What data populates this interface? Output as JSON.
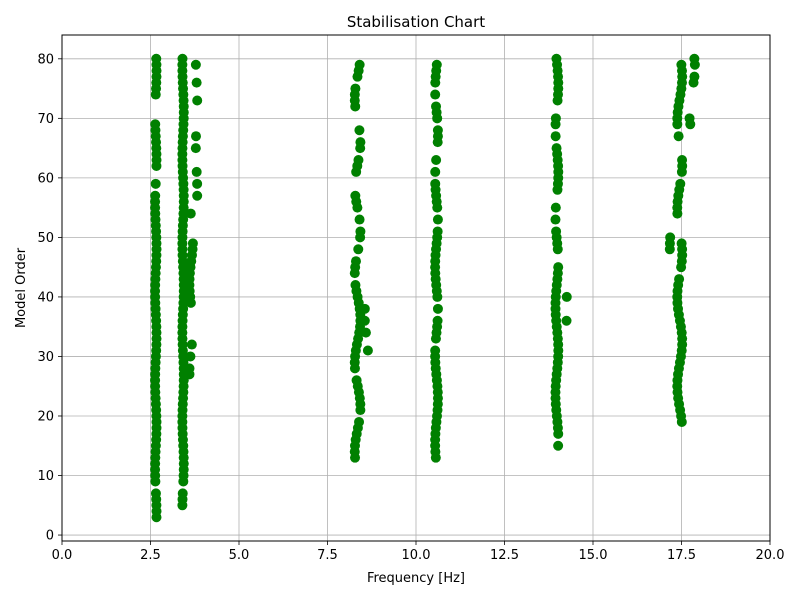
{
  "chart_data": {
    "type": "scatter",
    "title": "Stabilisation Chart",
    "xlabel": "Frequency [Hz]",
    "ylabel": "Model Order",
    "xlim": [
      0,
      20
    ],
    "ylim": [
      -1,
      84
    ],
    "xticks": [
      "0.0",
      "2.5",
      "5.0",
      "7.5",
      "10.0",
      "12.5",
      "15.0",
      "17.5",
      "20.0"
    ],
    "yticks": [
      "0",
      "10",
      "20",
      "30",
      "40",
      "50",
      "60",
      "70",
      "80"
    ],
    "grid": true,
    "marker_color": "#008000",
    "clusters": [
      {
        "x": 2.65,
        "spread": 0.02,
        "ranges": [
          [
            3,
            7
          ],
          [
            9,
            57
          ],
          [
            59,
            59
          ],
          [
            62,
            69
          ],
          [
            74,
            80
          ]
        ]
      },
      {
        "x": 3.42,
        "spread": 0.02,
        "ranges": [
          [
            5,
            7
          ],
          [
            9,
            80
          ]
        ]
      },
      {
        "x": 3.65,
        "spread": 0.05,
        "ranges": [
          [
            27,
            28
          ],
          [
            30,
            30
          ],
          [
            32,
            32
          ],
          [
            39,
            49
          ],
          [
            54,
            54
          ]
        ]
      },
      {
        "x": 3.8,
        "spread": 0.02,
        "ranges": [
          [
            57,
            57
          ],
          [
            59,
            59
          ],
          [
            61,
            61
          ],
          [
            65,
            65
          ],
          [
            67,
            67
          ],
          [
            73,
            73
          ],
          [
            76,
            76
          ],
          [
            79,
            79
          ]
        ]
      },
      {
        "x": 8.35,
        "spread": 0.08,
        "ranges": [
          [
            13,
            19
          ],
          [
            21,
            26
          ],
          [
            28,
            42
          ],
          [
            44,
            46
          ],
          [
            48,
            48
          ],
          [
            50,
            51
          ],
          [
            53,
            53
          ],
          [
            55,
            57
          ],
          [
            61,
            63
          ],
          [
            65,
            66
          ],
          [
            68,
            68
          ],
          [
            72,
            75
          ],
          [
            77,
            79
          ]
        ]
      },
      {
        "x": 8.6,
        "spread": 0.05,
        "ranges": [
          [
            31,
            31
          ],
          [
            34,
            34
          ],
          [
            36,
            36
          ],
          [
            38,
            38
          ]
        ]
      },
      {
        "x": 10.58,
        "spread": 0.04,
        "ranges": [
          [
            13,
            31
          ],
          [
            33,
            36
          ],
          [
            38,
            38
          ],
          [
            40,
            51
          ],
          [
            53,
            53
          ],
          [
            55,
            59
          ],
          [
            61,
            61
          ],
          [
            63,
            63
          ],
          [
            66,
            68
          ],
          [
            70,
            72
          ],
          [
            74,
            74
          ],
          [
            76,
            79
          ]
        ]
      },
      {
        "x": 13.98,
        "spread": 0.04,
        "ranges": [
          [
            15,
            15
          ],
          [
            17,
            45
          ],
          [
            48,
            51
          ],
          [
            53,
            53
          ],
          [
            55,
            55
          ],
          [
            58,
            65
          ],
          [
            67,
            67
          ],
          [
            69,
            70
          ],
          [
            73,
            80
          ]
        ]
      },
      {
        "x": 14.25,
        "spread": 0.01,
        "ranges": [
          [
            36,
            36
          ],
          [
            40,
            40
          ]
        ]
      },
      {
        "x": 17.45,
        "spread": 0.07,
        "ranges": [
          [
            19,
            43
          ],
          [
            45,
            49
          ],
          [
            54,
            59
          ],
          [
            61,
            63
          ],
          [
            67,
            67
          ],
          [
            69,
            79
          ]
        ]
      },
      {
        "x": 17.2,
        "spread": 0.03,
        "ranges": [
          [
            48,
            50
          ]
        ]
      },
      {
        "x": 17.8,
        "spread": 0.08,
        "ranges": [
          [
            69,
            70
          ],
          [
            76,
            77
          ],
          [
            79,
            80
          ]
        ]
      }
    ]
  }
}
